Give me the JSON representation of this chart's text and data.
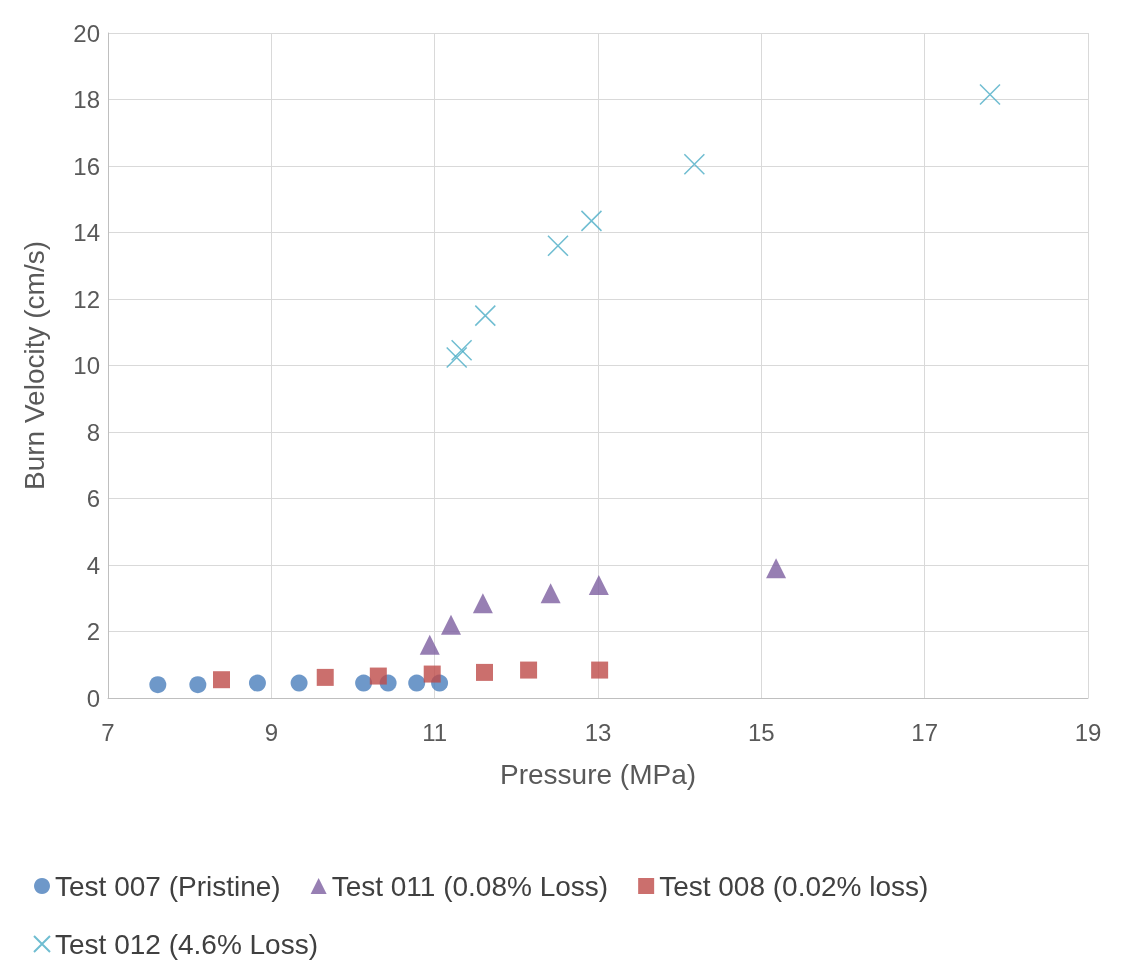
{
  "chart_data": {
    "type": "scatter",
    "xlabel": "Pressure (MPa)",
    "ylabel": "Burn Velocity (cm/s)",
    "xlim": [
      7,
      19
    ],
    "xticks": [
      7,
      9,
      11,
      13,
      15,
      17,
      19
    ],
    "ylim": [
      0,
      20
    ],
    "yticks": [
      0,
      2,
      4,
      6,
      8,
      10,
      12,
      14,
      16,
      18,
      20
    ],
    "grid": true,
    "legend": "bottom",
    "series": [
      {
        "name": "Test 007 (Pristine)",
        "color": "#4a7ebb",
        "marker": "circle",
        "x": [
          7.61,
          8.1,
          8.83,
          9.34,
          10.13,
          10.43,
          10.78,
          11.06
        ],
        "values": [
          0.4,
          0.4,
          0.45,
          0.45,
          0.45,
          0.45,
          0.45,
          0.45
        ]
      },
      {
        "name": "Test 011 (0.08% Loss)",
        "color": "#7d5fa0",
        "marker": "triangle",
        "x": [
          10.94,
          11.2,
          11.59,
          12.42,
          13.01,
          15.18
        ],
        "values": [
          1.6,
          2.2,
          2.85,
          3.15,
          3.4,
          3.9
        ]
      },
      {
        "name": "Test 008 (0.02% loss)",
        "color": "#be4b48",
        "marker": "square",
        "x": [
          8.39,
          9.66,
          10.31,
          10.97,
          11.61,
          12.15,
          13.02
        ],
        "values": [
          0.55,
          0.62,
          0.66,
          0.72,
          0.77,
          0.84,
          0.84
        ]
      },
      {
        "name": "Test 012 (4.6% Loss)",
        "color": "#4bacc6",
        "marker": "cross",
        "x": [
          11.27,
          11.33,
          11.62,
          12.51,
          12.92,
          14.18,
          17.8
        ],
        "values": [
          10.24,
          10.46,
          11.5,
          13.6,
          14.35,
          16.05,
          18.15
        ]
      }
    ]
  }
}
